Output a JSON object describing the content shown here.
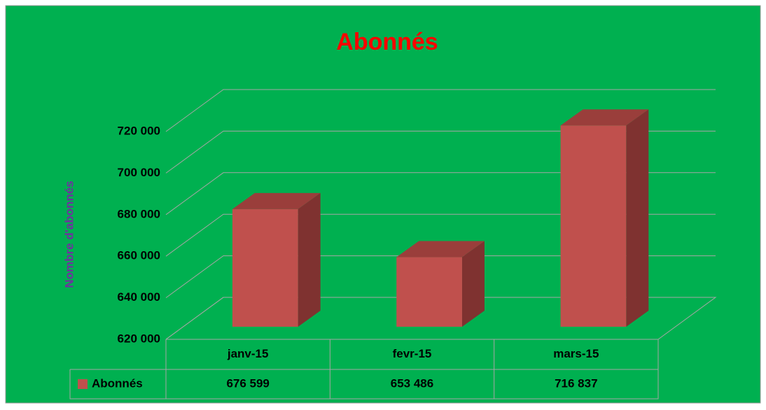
{
  "chart_data": {
    "type": "bar3d",
    "title": "Abonnés",
    "y_label": "Nombre d'abonnés",
    "categories": [
      "janv-15",
      "fevr-15",
      "mars-15"
    ],
    "series": [
      {
        "name": "Abonnés",
        "color": "#c0504d",
        "values": [
          676599,
          653486,
          716837
        ],
        "value_labels": [
          "676 599",
          "653 486",
          "716 837"
        ]
      }
    ],
    "ylim": [
      620000,
      720000
    ],
    "yticks": [
      {
        "value": 620000,
        "label": "620 000"
      },
      {
        "value": 640000,
        "label": "640 000"
      },
      {
        "value": 660000,
        "label": "660 000"
      },
      {
        "value": 680000,
        "label": "680 000"
      },
      {
        "value": 700000,
        "label": "700 000"
      },
      {
        "value": 720000,
        "label": "720 000"
      }
    ],
    "grid": true,
    "data_table": true
  }
}
